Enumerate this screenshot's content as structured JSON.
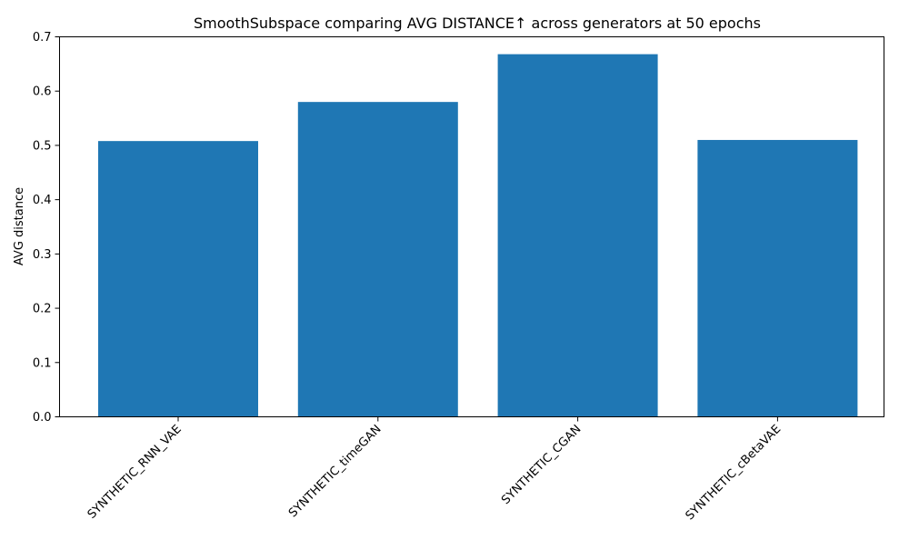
{
  "chart_data": {
    "type": "bar",
    "title": "SmoothSubspace comparing AVG DISTANCE↑ across generators at 50 epochs",
    "xlabel": "",
    "ylabel": "AVG distance",
    "categories": [
      "SYNTHETIC_RNN_VAE",
      "SYNTHETIC_timeGAN",
      "SYNTHETIC_CGAN",
      "SYNTHETIC_cBetaVAE"
    ],
    "values": [
      0.508,
      0.58,
      0.668,
      0.51
    ],
    "ylim": [
      0,
      0.7
    ],
    "yticks": [
      "0.0",
      "0.1",
      "0.2",
      "0.3",
      "0.4",
      "0.5",
      "0.6",
      "0.7"
    ],
    "grid": false,
    "bar_color": "#1f77b4"
  }
}
